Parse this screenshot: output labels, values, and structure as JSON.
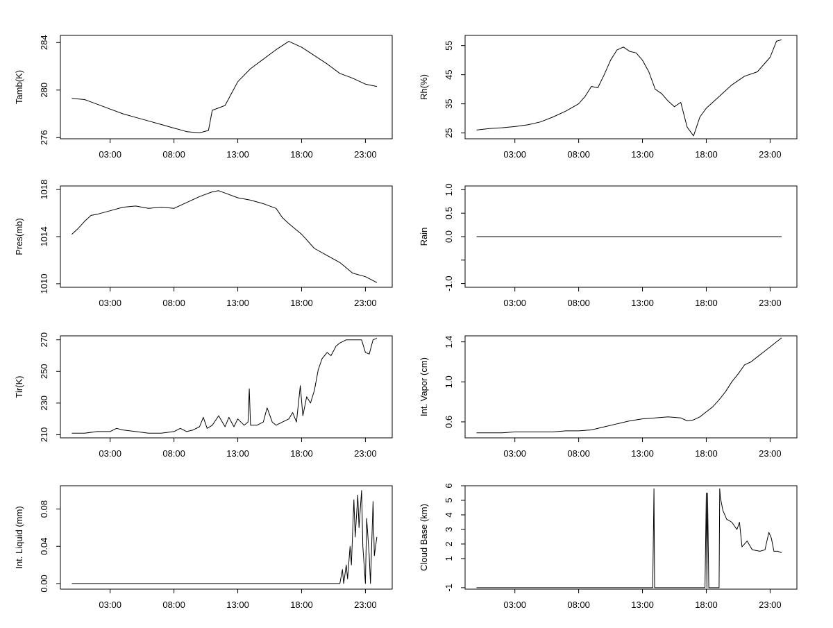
{
  "chart_data": [
    {
      "type": "line",
      "ylabel": "Tamb(K)",
      "xlabel": "",
      "x_ticks": [
        "03:00",
        "08:00",
        "13:00",
        "18:00",
        "23:00"
      ],
      "x_tick_hours": [
        3,
        8,
        13,
        18,
        23
      ],
      "xlim": [
        -0.9,
        25.1
      ],
      "ylim": [
        275.9,
        284.6
      ],
      "y_ticks": [
        276,
        280,
        284
      ],
      "y_tick_labels": [
        "276",
        "280",
        "284"
      ],
      "x": [
        0,
        1,
        2,
        3,
        4,
        5,
        6,
        7,
        8,
        9,
        10,
        10.7,
        11,
        11.5,
        12,
        13,
        14,
        15,
        16,
        17,
        18,
        19,
        20,
        21,
        22,
        23,
        23.9
      ],
      "y": [
        279.3,
        279.2,
        278.8,
        278.4,
        278.0,
        277.7,
        277.4,
        277.1,
        276.8,
        276.5,
        276.4,
        276.6,
        278.3,
        278.5,
        278.7,
        280.7,
        281.8,
        282.6,
        283.4,
        284.1,
        283.6,
        282.9,
        282.2,
        281.4,
        281.0,
        280.5,
        280.3
      ]
    },
    {
      "type": "line",
      "ylabel": "Rh(%)",
      "xlabel": "",
      "x_ticks": [
        "03:00",
        "08:00",
        "13:00",
        "18:00",
        "23:00"
      ],
      "x_tick_hours": [
        3,
        8,
        13,
        18,
        23
      ],
      "xlim": [
        -0.9,
        25.1
      ],
      "ylim": [
        23,
        58.5
      ],
      "y_ticks": [
        25,
        35,
        45,
        55
      ],
      "y_tick_labels": [
        "25",
        "35",
        "45",
        "55"
      ],
      "x": [
        0,
        1,
        2,
        3,
        4,
        5,
        6,
        7,
        8,
        8.5,
        9,
        9.5,
        10,
        10.5,
        11,
        11.5,
        12,
        12.5,
        13,
        13.5,
        14,
        14.5,
        15,
        15.5,
        16,
        16.5,
        17,
        17.5,
        18,
        19,
        20,
        21,
        22,
        23,
        23.5,
        23.9
      ],
      "y": [
        26.0,
        26.5,
        26.8,
        27.2,
        27.8,
        28.8,
        30.5,
        32.5,
        35.0,
        37.5,
        41.0,
        40.5,
        45.0,
        50.0,
        53.5,
        54.5,
        53.0,
        52.5,
        50.0,
        46.0,
        40.0,
        38.5,
        36.0,
        34.0,
        35.5,
        27.0,
        24.0,
        30.5,
        33.5,
        37.5,
        41.5,
        44.5,
        46.0,
        51.0,
        56.5,
        57.0
      ]
    },
    {
      "type": "line",
      "ylabel": "Pres(mb)",
      "xlabel": "",
      "x_ticks": [
        "03:00",
        "08:00",
        "13:00",
        "18:00",
        "23:00"
      ],
      "x_tick_hours": [
        3,
        8,
        13,
        18,
        23
      ],
      "xlim": [
        -0.9,
        25.1
      ],
      "ylim": [
        1009.7,
        1018.3
      ],
      "y_ticks": [
        1010,
        1014,
        1018
      ],
      "y_tick_labels": [
        "1010",
        "1014",
        "1018"
      ],
      "x": [
        0,
        0.5,
        1,
        1.5,
        2,
        3,
        4,
        5,
        6,
        7,
        8,
        9,
        10,
        11,
        11.5,
        12,
        13,
        14,
        15,
        16,
        16.5,
        17,
        18,
        19,
        20,
        21,
        22,
        23,
        23.9
      ],
      "y": [
        1014.2,
        1014.7,
        1015.3,
        1015.8,
        1015.9,
        1016.2,
        1016.5,
        1016.6,
        1016.4,
        1016.5,
        1016.4,
        1016.9,
        1017.4,
        1017.8,
        1017.9,
        1017.7,
        1017.3,
        1017.1,
        1016.8,
        1016.4,
        1015.6,
        1015.1,
        1014.2,
        1013.0,
        1012.4,
        1011.8,
        1010.9,
        1010.6,
        1010.1
      ]
    },
    {
      "type": "line",
      "ylabel": "Rain",
      "xlabel": "",
      "x_ticks": [
        "03:00",
        "08:00",
        "13:00",
        "18:00",
        "23:00"
      ],
      "x_tick_hours": [
        3,
        8,
        13,
        18,
        23
      ],
      "xlim": [
        -0.9,
        25.1
      ],
      "ylim": [
        -1.08,
        1.08
      ],
      "y_ticks": [
        -1.0,
        -0.5,
        0.0,
        0.5,
        1.0
      ],
      "y_tick_labels": [
        "-1.0",
        "",
        "0.0",
        "0.5",
        "1.0"
      ],
      "x": [
        0,
        23.9
      ],
      "y": [
        0,
        0
      ]
    },
    {
      "type": "line",
      "ylabel": "Tir(K)",
      "xlabel": "",
      "x_ticks": [
        "03:00",
        "08:00",
        "13:00",
        "18:00",
        "23:00"
      ],
      "x_tick_hours": [
        3,
        8,
        13,
        18,
        23
      ],
      "xlim": [
        -0.9,
        25.1
      ],
      "ylim": [
        208,
        272.5
      ],
      "y_ticks": [
        210,
        230,
        250,
        270
      ],
      "y_tick_labels": [
        "210",
        "230",
        "250",
        "270"
      ],
      "x": [
        0,
        1,
        2,
        3,
        3.5,
        4,
        5,
        6,
        7,
        8,
        8.5,
        9,
        9.5,
        10,
        10.3,
        10.6,
        11,
        11.5,
        12,
        12.3,
        12.7,
        13,
        13.5,
        13.8,
        13.9,
        14,
        14.5,
        15,
        15.3,
        15.7,
        16,
        16.5,
        17,
        17.3,
        17.6,
        17.9,
        18.1,
        18.4,
        18.7,
        19,
        19.3,
        19.6,
        20,
        20.3,
        20.7,
        21,
        21.5,
        22,
        22.4,
        22.7,
        23,
        23.3,
        23.6,
        23.9
      ],
      "y": [
        211,
        211,
        212,
        212,
        214,
        213,
        212,
        211,
        211,
        212,
        214,
        212,
        213,
        215,
        221,
        214,
        216,
        222,
        215,
        221,
        215,
        220,
        216,
        218,
        239,
        216,
        216,
        218,
        227,
        218,
        216,
        218,
        220,
        224,
        218,
        241,
        222,
        234,
        230,
        238,
        251,
        258,
        262,
        260,
        266,
        268,
        270,
        270,
        270,
        270,
        262,
        261,
        270,
        271
      ]
    },
    {
      "type": "line",
      "ylabel": "Int. Vapor (cm)",
      "xlabel": "",
      "x_ticks": [
        "03:00",
        "08:00",
        "13:00",
        "18:00",
        "23:00"
      ],
      "x_tick_hours": [
        3,
        8,
        13,
        18,
        23
      ],
      "xlim": [
        -0.9,
        25.1
      ],
      "ylim": [
        0.44,
        1.46
      ],
      "y_ticks": [
        0.6,
        1.0,
        1.4
      ],
      "y_tick_labels": [
        "0.6",
        "1.0",
        "1.4"
      ],
      "x": [
        0,
        1,
        2,
        3,
        4,
        5,
        6,
        7,
        8,
        9,
        10,
        11,
        12,
        13,
        14,
        15,
        16,
        16.5,
        17,
        17.5,
        18,
        18.5,
        19,
        19.5,
        20,
        20.5,
        21,
        21.5,
        22,
        22.5,
        23,
        23.5,
        23.9
      ],
      "y": [
        0.49,
        0.49,
        0.49,
        0.5,
        0.5,
        0.5,
        0.5,
        0.51,
        0.51,
        0.52,
        0.55,
        0.58,
        0.61,
        0.63,
        0.64,
        0.65,
        0.64,
        0.61,
        0.62,
        0.65,
        0.7,
        0.75,
        0.82,
        0.9,
        1.0,
        1.08,
        1.17,
        1.2,
        1.25,
        1.3,
        1.35,
        1.4,
        1.44
      ]
    },
    {
      "type": "line",
      "ylabel": "Int. Liquid (mm)",
      "xlabel": "",
      "x_ticks": [
        "03:00",
        "08:00",
        "13:00",
        "18:00",
        "23:00"
      ],
      "x_tick_hours": [
        3,
        8,
        13,
        18,
        23
      ],
      "xlim": [
        -0.9,
        25.1
      ],
      "ylim": [
        -0.006,
        0.105
      ],
      "y_ticks": [
        0.0,
        0.04,
        0.08
      ],
      "y_tick_labels": [
        "0.00",
        "0.04",
        "0.08"
      ],
      "x": [
        0,
        21,
        21.2,
        21.3,
        21.5,
        21.6,
        21.8,
        21.9,
        22.1,
        22.2,
        22.4,
        22.5,
        22.7,
        22.8,
        23.0,
        23.1,
        23.3,
        23.4,
        23.6,
        23.7,
        23.9
      ],
      "y": [
        0,
        0,
        0.015,
        0,
        0.02,
        0.005,
        0.04,
        0.02,
        0.09,
        0.05,
        0.095,
        0.06,
        0.1,
        0.04,
        0.0,
        0.07,
        0.03,
        0.0,
        0.088,
        0.03,
        0.05
      ]
    },
    {
      "type": "line",
      "ylabel": "Cloud Base (km)",
      "xlabel": "",
      "x_ticks": [
        "03:00",
        "08:00",
        "13:00",
        "18:00",
        "23:00"
      ],
      "x_tick_hours": [
        3,
        8,
        13,
        18,
        23
      ],
      "xlim": [
        -0.9,
        25.1
      ],
      "ylim": [
        -1.1,
        6.0
      ],
      "y_ticks": [
        -1,
        1,
        2,
        3,
        4,
        5,
        6
      ],
      "y_tick_labels": [
        "-1",
        "1",
        "2",
        "3",
        "4",
        "5",
        "6"
      ],
      "x": [
        0,
        13.8,
        13.85,
        13.9,
        13.95,
        14.0,
        17.9,
        18.0,
        18.05,
        18.1,
        18.2,
        18.3,
        19.0,
        19.05,
        19.1,
        19.3,
        19.6,
        20.0,
        20.4,
        20.6,
        20.8,
        21.2,
        21.6,
        22.2,
        22.6,
        22.9,
        23.1,
        23.3,
        23.6,
        23.9
      ],
      "y": [
        -1,
        -1,
        2.4,
        5.8,
        -1,
        -1,
        -1,
        5.5,
        -1,
        5.5,
        -1,
        -1,
        -1,
        5.8,
        5.2,
        4.3,
        3.7,
        3.5,
        3.0,
        3.5,
        1.8,
        2.2,
        1.6,
        1.5,
        1.6,
        2.8,
        2.4,
        1.5,
        1.5,
        1.4
      ]
    }
  ]
}
